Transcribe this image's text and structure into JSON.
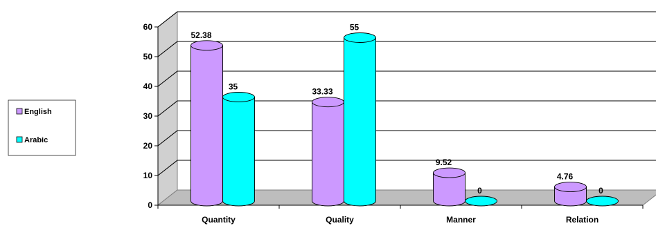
{
  "chart_data": {
    "type": "bar",
    "categories": [
      "Quantity",
      "Quality",
      "Manner",
      "Relation"
    ],
    "series": [
      {
        "name": "English",
        "values": [
          52.38,
          33.33,
          9.52,
          4.76
        ],
        "value_labels": [
          "52.38",
          "33.33",
          "9.52",
          "4.76"
        ],
        "color": "#CC99FF"
      },
      {
        "name": "Arabic",
        "values": [
          35,
          55,
          0,
          0
        ],
        "value_labels": [
          "35",
          "55",
          "0",
          "0"
        ],
        "color": "#00FFFF"
      }
    ],
    "ylim": [
      0,
      60
    ],
    "yticks": [
      "0",
      "10",
      "20",
      "30",
      "40",
      "50",
      "60"
    ],
    "grid": true,
    "legend_position": "left"
  }
}
